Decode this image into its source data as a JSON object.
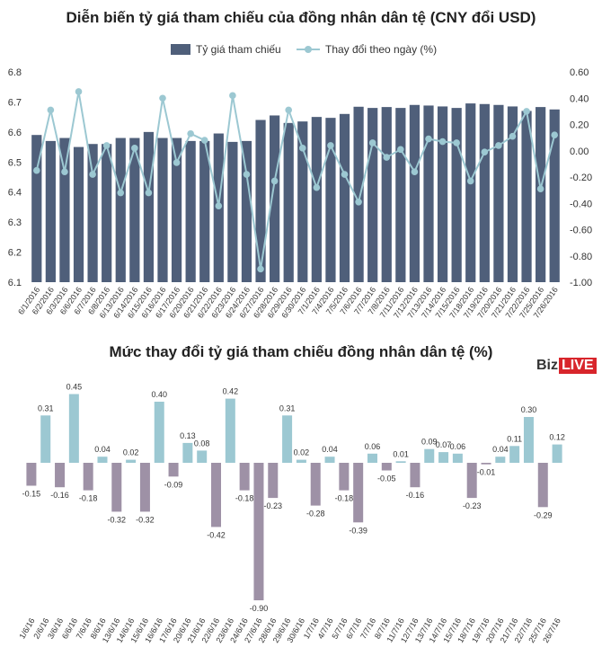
{
  "chart_data": [
    {
      "type": "bar+line",
      "title": "Diễn biến tỷ giá tham chiếu của đồng nhân dân tệ (CNY đổi USD)",
      "legend_position": "top",
      "categories": [
        "6/1/2016",
        "6/2/2016",
        "6/3/2016",
        "6/6/2016",
        "6/7/2016",
        "6/8/2016",
        "6/13/2016",
        "6/14/2016",
        "6/15/2016",
        "6/16/2016",
        "6/17/2016",
        "6/20/2016",
        "6/21/2016",
        "6/22/2016",
        "6/23/2016",
        "6/24/2016",
        "6/27/2016",
        "6/28/2016",
        "6/29/2016",
        "6/30/2016",
        "7/1/2016",
        "7/4/2016",
        "7/5/2016",
        "7/6/2016",
        "7/7/2016",
        "7/8/2016",
        "7/11/2016",
        "7/12/2016",
        "7/13/2016",
        "7/14/2016",
        "7/15/2016",
        "7/18/2016",
        "7/19/2016",
        "7/20/2016",
        "7/21/2016",
        "7/22/2016",
        "7/25/2016",
        "7/26/2016"
      ],
      "series": [
        {
          "name": "Tỷ giá tham chiếu",
          "type": "bar",
          "axis": "left",
          "color": "#4f5f7a",
          "values": [
            6.59,
            6.57,
            6.58,
            6.55,
            6.56,
            6.56,
            6.58,
            6.58,
            6.6,
            6.58,
            6.58,
            6.57,
            6.57,
            6.595,
            6.567,
            6.57,
            6.64,
            6.655,
            6.63,
            6.635,
            6.65,
            6.647,
            6.66,
            6.684,
            6.68,
            6.683,
            6.68,
            6.69,
            6.688,
            6.685,
            6.68,
            6.695,
            6.693,
            6.69,
            6.685,
            6.67,
            6.683,
            6.675
          ]
        },
        {
          "name": "Thay đổi theo ngày (%)",
          "type": "line",
          "axis": "right",
          "color": "#9cc8d2",
          "values": [
            -0.15,
            0.31,
            -0.16,
            0.45,
            -0.18,
            0.04,
            -0.32,
            0.02,
            -0.32,
            0.4,
            -0.09,
            0.13,
            0.08,
            -0.42,
            0.42,
            -0.18,
            -0.9,
            -0.23,
            0.31,
            0.02,
            -0.28,
            0.04,
            -0.18,
            -0.39,
            0.06,
            -0.05,
            0.01,
            -0.16,
            0.09,
            0.07,
            0.06,
            -0.23,
            -0.01,
            0.04,
            0.11,
            0.3,
            -0.29,
            0.12
          ]
        }
      ],
      "y_left": {
        "min": 6.1,
        "max": 6.8,
        "ticks": [
          "6.8",
          "6.7",
          "6.6",
          "6.5",
          "6.4",
          "6.3",
          "6.2",
          "6.1"
        ]
      },
      "y_right": {
        "min": -1.0,
        "max": 0.6,
        "ticks": [
          "0.60",
          "0.40",
          "0.20",
          "0.00",
          "-0.20",
          "-0.40",
          "-0.60",
          "-0.80",
          "-1.00"
        ]
      },
      "grid": false
    },
    {
      "type": "bar",
      "title": "Mức thay đổi tỷ giá tham chiếu đồng nhân dân tệ (%)",
      "positive_color": "#9cc8d2",
      "negative_color": "#9e91a6",
      "grid": false,
      "categories": [
        "1/6/16",
        "2/6/16",
        "3/6/16",
        "6/6/16",
        "7/6/16",
        "8/6/16",
        "13/6/16",
        "14/6/16",
        "15/6/16",
        "16/6/16",
        "17/6/16",
        "20/6/16",
        "21/6/16",
        "22/6/16",
        "23/6/16",
        "24/6/16",
        "27/6/16",
        "28/6/16",
        "29/6/16",
        "30/6/16",
        "1/7/16",
        "4/7/16",
        "5/7/16",
        "6/7/16",
        "7/7/16",
        "8/7/16",
        "11/7/16",
        "12/7/16",
        "13/7/16",
        "14/7/16",
        "15/7/16",
        "18/7/16",
        "19/7/16",
        "20/7/16",
        "21/7/16",
        "22/7/16",
        "25/7/16",
        "26/7/16"
      ],
      "values": [
        -0.15,
        0.31,
        -0.16,
        0.45,
        -0.18,
        0.04,
        -0.32,
        0.02,
        -0.32,
        0.4,
        -0.09,
        0.13,
        0.08,
        -0.42,
        0.42,
        -0.18,
        -0.9,
        -0.23,
        0.31,
        0.02,
        -0.28,
        0.04,
        -0.18,
        -0.39,
        0.06,
        -0.05,
        0.01,
        -0.16,
        0.09,
        0.07,
        0.06,
        -0.23,
        -0.01,
        0.04,
        0.11,
        0.3,
        -0.29,
        0.12
      ],
      "data_labels": [
        "-0.15",
        "0.31",
        "-0.16",
        "0.45",
        "-0.18",
        "0.04",
        "-0.32",
        "0.02",
        "-0.32",
        "0.40",
        "-0.09",
        "0.13",
        "0.08",
        "-0.42",
        "0.42",
        "-0.18",
        "-0.90",
        "-0.23",
        "0.31",
        "0.02",
        "-0.28",
        "0.04",
        "-0.18",
        "-0.39",
        "0.06",
        "-0.05",
        "0.01",
        "-0.16",
        "0.09",
        "0.07",
        "0.06",
        "-0.23",
        "-0.01",
        "0.04",
        "0.11",
        "0.30",
        "-0.29",
        "0.12"
      ]
    }
  ],
  "brand": {
    "part1": "Biz",
    "part2": "LIVE"
  }
}
